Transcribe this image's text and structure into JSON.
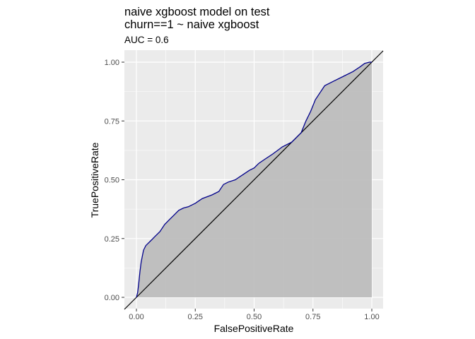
{
  "chart_data": {
    "type": "line",
    "title": "naive xgboost model on test",
    "subtitle_line2": "churn==1 ~ naive xgboost",
    "subtitle": "AUC = 0.6",
    "xlabel": "FalsePositiveRate",
    "ylabel": "TruePositiveRate",
    "xlim": [
      0,
      1
    ],
    "ylim": [
      0,
      1
    ],
    "x_ticks": [
      "0.00",
      "0.25",
      "0.50",
      "0.75",
      "1.00"
    ],
    "y_ticks": [
      "0.00",
      "0.25",
      "0.50",
      "0.75",
      "1.00"
    ],
    "grid": true,
    "legend": "none",
    "series": [
      {
        "x": [
          0.0,
          0.005,
          0.01,
          0.015,
          0.02,
          0.03,
          0.04,
          0.06,
          0.08,
          0.1,
          0.12,
          0.14,
          0.16,
          0.18,
          0.2,
          0.22,
          0.25,
          0.28,
          0.32,
          0.35,
          0.37,
          0.39,
          0.42,
          0.45,
          0.48,
          0.5,
          0.52,
          0.55,
          0.58,
          0.62,
          0.66,
          0.7,
          0.72,
          0.74,
          0.76,
          0.78,
          0.8,
          0.84,
          0.88,
          0.92,
          0.95,
          0.97,
          0.99,
          1.0
        ],
        "y": [
          0.0,
          0.02,
          0.06,
          0.11,
          0.15,
          0.2,
          0.22,
          0.24,
          0.26,
          0.28,
          0.31,
          0.33,
          0.35,
          0.37,
          0.38,
          0.385,
          0.4,
          0.42,
          0.435,
          0.45,
          0.48,
          0.49,
          0.5,
          0.52,
          0.54,
          0.55,
          0.57,
          0.59,
          0.61,
          0.64,
          0.66,
          0.7,
          0.75,
          0.79,
          0.84,
          0.87,
          0.9,
          0.92,
          0.94,
          0.96,
          0.98,
          0.995,
          1.0,
          1.0
        ]
      }
    ],
    "colors": {
      "curve": "#00008b",
      "fill": "#bdbdbd",
      "panel": "#ebebeb",
      "grid": "#ffffff",
      "diagonal": "#000000"
    }
  }
}
